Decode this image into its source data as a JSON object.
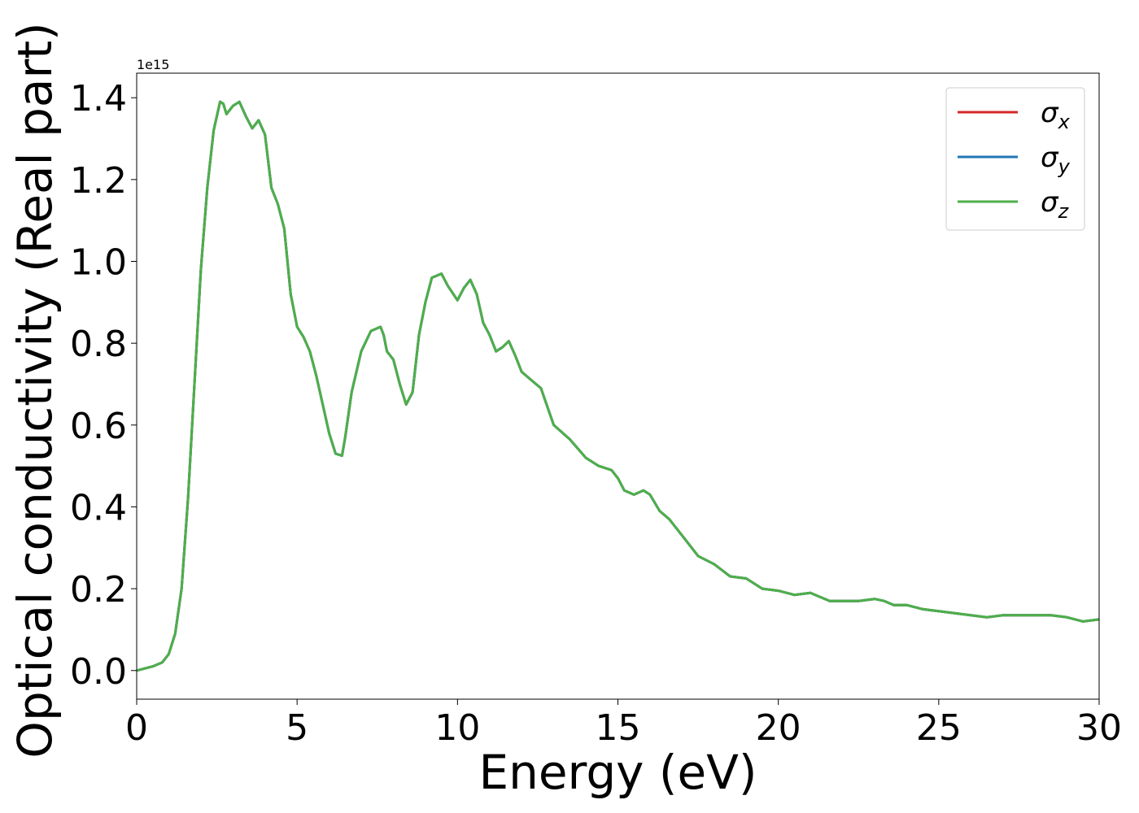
{
  "chart_data": {
    "type": "line",
    "title": "",
    "xlabel": "Energy (eV)",
    "ylabel": "Optical conductivity (Real part)",
    "y_offset_label": "1e15",
    "xlim": [
      0,
      30
    ],
    "ylim": [
      -0.07,
      1.46
    ],
    "y_scale_note": "values in units of 1e15",
    "xticks": [
      0,
      5,
      10,
      15,
      20,
      25,
      30
    ],
    "xtick_labels": [
      "0",
      "5",
      "10",
      "15",
      "20",
      "25",
      "30"
    ],
    "yticks": [
      0.0,
      0.2,
      0.4,
      0.6,
      0.8,
      1.0,
      1.2,
      1.4
    ],
    "ytick_labels": [
      "0.0",
      "0.2",
      "0.4",
      "0.6",
      "0.8",
      "1.0",
      "1.2",
      "1.4"
    ],
    "grid": false,
    "legend_position": "top-right",
    "x": [
      0,
      0.5,
      0.8,
      1.0,
      1.2,
      1.4,
      1.6,
      1.8,
      2.0,
      2.2,
      2.4,
      2.6,
      2.7,
      2.8,
      3.0,
      3.2,
      3.4,
      3.6,
      3.8,
      4.0,
      4.2,
      4.4,
      4.6,
      4.8,
      5.0,
      5.2,
      5.4,
      5.6,
      5.8,
      6.0,
      6.2,
      6.4,
      6.5,
      6.7,
      7.0,
      7.3,
      7.6,
      7.7,
      7.8,
      8.0,
      8.2,
      8.4,
      8.6,
      8.8,
      9.0,
      9.2,
      9.5,
      9.7,
      10.0,
      10.2,
      10.4,
      10.6,
      10.8,
      11.0,
      11.2,
      11.4,
      11.6,
      11.8,
      12.0,
      12.3,
      12.6,
      13.0,
      13.5,
      14.0,
      14.4,
      14.8,
      15.0,
      15.2,
      15.5,
      15.8,
      16.0,
      16.3,
      16.6,
      17.0,
      17.5,
      18.0,
      18.5,
      19.0,
      19.5,
      20.0,
      20.5,
      21.0,
      21.3,
      21.6,
      22.0,
      22.5,
      23.0,
      23.3,
      23.6,
      24.0,
      24.5,
      25.0,
      25.5,
      26.0,
      26.5,
      27.0,
      27.5,
      28.0,
      28.5,
      29.0,
      29.5,
      30.0
    ],
    "series": [
      {
        "name": "σx",
        "color": "#d62728",
        "values": [
          0.0,
          0.01,
          0.02,
          0.04,
          0.09,
          0.2,
          0.42,
          0.7,
          0.98,
          1.18,
          1.32,
          1.39,
          1.385,
          1.36,
          1.38,
          1.39,
          1.355,
          1.325,
          1.345,
          1.31,
          1.18,
          1.14,
          1.08,
          0.92,
          0.84,
          0.815,
          0.78,
          0.72,
          0.65,
          0.58,
          0.53,
          0.525,
          0.57,
          0.68,
          0.78,
          0.83,
          0.84,
          0.82,
          0.78,
          0.76,
          0.7,
          0.65,
          0.68,
          0.82,
          0.9,
          0.96,
          0.97,
          0.94,
          0.905,
          0.935,
          0.955,
          0.92,
          0.85,
          0.82,
          0.78,
          0.79,
          0.805,
          0.77,
          0.73,
          0.71,
          0.69,
          0.6,
          0.565,
          0.52,
          0.5,
          0.49,
          0.47,
          0.44,
          0.43,
          0.44,
          0.43,
          0.39,
          0.37,
          0.33,
          0.28,
          0.26,
          0.23,
          0.225,
          0.2,
          0.195,
          0.185,
          0.19,
          0.18,
          0.17,
          0.17,
          0.17,
          0.175,
          0.17,
          0.16,
          0.16,
          0.15,
          0.145,
          0.14,
          0.135,
          0.13,
          0.135,
          0.135,
          0.135,
          0.135,
          0.13,
          0.12,
          0.125
        ]
      },
      {
        "name": "σy",
        "color": "#1f77b4",
        "values": [
          0.0,
          0.01,
          0.02,
          0.04,
          0.09,
          0.2,
          0.42,
          0.7,
          0.98,
          1.18,
          1.32,
          1.39,
          1.385,
          1.36,
          1.38,
          1.39,
          1.355,
          1.325,
          1.345,
          1.31,
          1.18,
          1.14,
          1.08,
          0.92,
          0.84,
          0.815,
          0.78,
          0.72,
          0.65,
          0.58,
          0.53,
          0.525,
          0.57,
          0.68,
          0.78,
          0.83,
          0.84,
          0.82,
          0.78,
          0.76,
          0.7,
          0.65,
          0.68,
          0.82,
          0.9,
          0.96,
          0.97,
          0.94,
          0.905,
          0.935,
          0.955,
          0.92,
          0.85,
          0.82,
          0.78,
          0.79,
          0.805,
          0.77,
          0.73,
          0.71,
          0.69,
          0.6,
          0.565,
          0.52,
          0.5,
          0.49,
          0.47,
          0.44,
          0.43,
          0.44,
          0.43,
          0.39,
          0.37,
          0.33,
          0.28,
          0.26,
          0.23,
          0.225,
          0.2,
          0.195,
          0.185,
          0.19,
          0.18,
          0.17,
          0.17,
          0.17,
          0.175,
          0.17,
          0.16,
          0.16,
          0.15,
          0.145,
          0.14,
          0.135,
          0.13,
          0.135,
          0.135,
          0.135,
          0.135,
          0.13,
          0.12,
          0.125
        ]
      },
      {
        "name": "σz",
        "color": "#4daf4a",
        "values": [
          0.0,
          0.01,
          0.02,
          0.04,
          0.09,
          0.2,
          0.42,
          0.7,
          0.98,
          1.18,
          1.32,
          1.39,
          1.385,
          1.36,
          1.38,
          1.39,
          1.355,
          1.325,
          1.345,
          1.31,
          1.18,
          1.14,
          1.08,
          0.92,
          0.84,
          0.815,
          0.78,
          0.72,
          0.65,
          0.58,
          0.53,
          0.525,
          0.57,
          0.68,
          0.78,
          0.83,
          0.84,
          0.82,
          0.78,
          0.76,
          0.7,
          0.65,
          0.68,
          0.82,
          0.9,
          0.96,
          0.97,
          0.94,
          0.905,
          0.935,
          0.955,
          0.92,
          0.85,
          0.82,
          0.78,
          0.79,
          0.805,
          0.77,
          0.73,
          0.71,
          0.69,
          0.6,
          0.565,
          0.52,
          0.5,
          0.49,
          0.47,
          0.44,
          0.43,
          0.44,
          0.43,
          0.39,
          0.37,
          0.33,
          0.28,
          0.26,
          0.23,
          0.225,
          0.2,
          0.195,
          0.185,
          0.19,
          0.18,
          0.17,
          0.17,
          0.17,
          0.175,
          0.17,
          0.16,
          0.16,
          0.15,
          0.145,
          0.14,
          0.135,
          0.13,
          0.135,
          0.135,
          0.135,
          0.135,
          0.13,
          0.12,
          0.125
        ]
      }
    ],
    "legend": [
      {
        "symbol": "σ",
        "subscript": "x",
        "color": "#d62728"
      },
      {
        "symbol": "σ",
        "subscript": "y",
        "color": "#1f77b4"
      },
      {
        "symbol": "σ",
        "subscript": "z",
        "color": "#4daf4a"
      }
    ]
  }
}
